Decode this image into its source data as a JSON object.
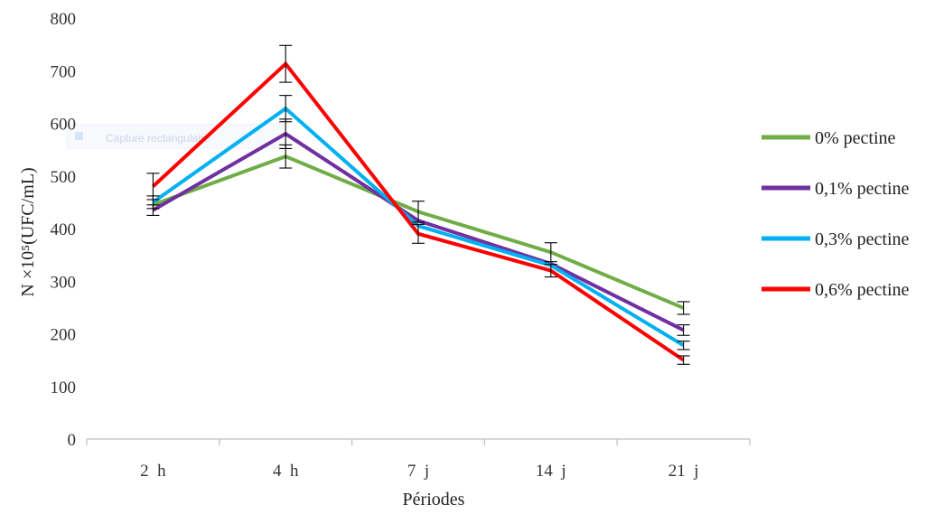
{
  "chart_data": {
    "type": "line",
    "title": "",
    "xlabel": "Périodes",
    "ylabel": "N ×10⁵(UFC/mL)",
    "categories": [
      "2  h",
      "4  h",
      "7  j",
      "14  j",
      "21  j"
    ],
    "ylim": [
      0,
      800
    ],
    "yticks": [
      0,
      100,
      200,
      300,
      400,
      500,
      600,
      700,
      800
    ],
    "grid": false,
    "legend_position": "right",
    "series": [
      {
        "name": "0% pectine",
        "color": "#70ad47",
        "values": [
          445,
          537,
          432,
          355,
          249
        ],
        "errors": [
          0,
          22,
          20,
          18,
          12
        ]
      },
      {
        "name": "0,1% pectine",
        "color": "#7030a0",
        "values": [
          435,
          580,
          415,
          333,
          207
        ],
        "errors": [
          10,
          28,
          0,
          0,
          10
        ]
      },
      {
        "name": "0,3% pectine",
        "color": "#00b0f0",
        "values": [
          450,
          628,
          405,
          330,
          178
        ],
        "errors": [
          12,
          25,
          0,
          0,
          8
        ]
      },
      {
        "name": "0,6% pectine",
        "color": "#ff0000",
        "values": [
          480,
          713,
          390,
          320,
          150
        ],
        "errors": [
          25,
          35,
          18,
          12,
          8
        ]
      }
    ],
    "ghost_text": "Capture rectangulaire"
  }
}
